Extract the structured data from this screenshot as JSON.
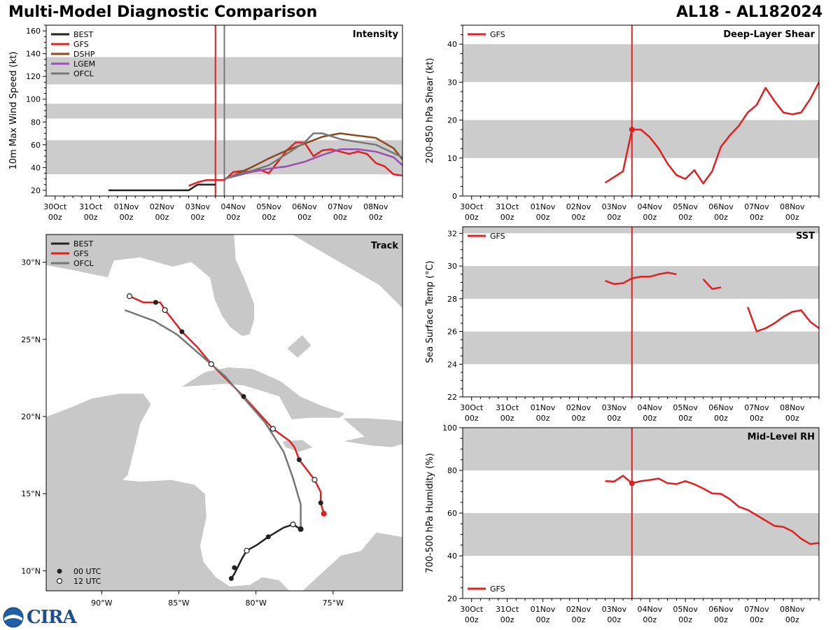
{
  "header": {
    "title": "Multi-Model Diagnostic Comparison",
    "storm": "AL18 - AL182024"
  },
  "colors": {
    "BEST": "#222222",
    "GFS": "#e02020",
    "DSHP": "#8b4a20",
    "LGEM": "#9b4fb0",
    "OFCL": "#777777",
    "band": "#cccccc",
    "land": "#c8c8c8"
  },
  "logo": {
    "text": "CIRA",
    "icon": "noaa-globe-icon"
  },
  "time_ticks": [
    {
      "t": 0,
      "day": "30Oct",
      "hr": "00z"
    },
    {
      "t": 1,
      "day": "31Oct",
      "hr": "00z"
    },
    {
      "t": 2,
      "day": "01Nov",
      "hr": "00z"
    },
    {
      "t": 3,
      "day": "02Nov",
      "hr": "00z"
    },
    {
      "t": 4,
      "day": "03Nov",
      "hr": "00z"
    },
    {
      "t": 5,
      "day": "04Nov",
      "hr": "00z"
    },
    {
      "t": 6,
      "day": "05Nov",
      "hr": "00z"
    },
    {
      "t": 7,
      "day": "06Nov",
      "hr": "00z"
    },
    {
      "t": 8,
      "day": "07Nov",
      "hr": "00z"
    },
    {
      "t": 9,
      "day": "08Nov",
      "hr": "00z"
    }
  ],
  "chart_data": [
    {
      "id": "intensity",
      "type": "line",
      "title": "Intensity",
      "ylabel": "10m Max Wind Speed (kt)",
      "xlim": [
        -0.25,
        9.75
      ],
      "ylim": [
        15,
        165
      ],
      "yticks": [
        20,
        40,
        60,
        80,
        100,
        120,
        140,
        160
      ],
      "bands": [
        [
          34,
          64
        ],
        [
          83,
          96
        ],
        [
          113,
          137
        ]
      ],
      "vlines": [
        {
          "t": 4.5,
          "color": "GFS"
        },
        {
          "t": 4.75,
          "color": "OFCL"
        }
      ],
      "legend": [
        "BEST",
        "GFS",
        "DSHP",
        "LGEM",
        "OFCL"
      ],
      "series": [
        {
          "name": "BEST",
          "x": [
            1.5,
            2,
            2.5,
            3,
            3.5,
            3.75,
            4,
            4.25,
            4.5
          ],
          "y": [
            20,
            20,
            20,
            20,
            20,
            20,
            25,
            25,
            25
          ]
        },
        {
          "name": "GFS",
          "x": [
            3.75,
            4,
            4.25,
            4.5,
            4.75,
            5,
            5.25,
            5.5,
            5.75,
            6,
            6.25,
            6.5,
            6.75,
            7,
            7.25,
            7.5,
            7.75,
            8,
            8.25,
            8.5,
            8.75,
            9,
            9.25,
            9.5,
            9.75
          ],
          "y": [
            24,
            27,
            29,
            29,
            29,
            36,
            37,
            36,
            38,
            35,
            45,
            55,
            62,
            62,
            50,
            55,
            56,
            54,
            52,
            54,
            52,
            44,
            41,
            34,
            33
          ]
        },
        {
          "name": "DSHP",
          "x": [
            4.75,
            5,
            5.5,
            6,
            6.5,
            7,
            7.5,
            8,
            8.5,
            9,
            9.5,
            9.75
          ],
          "y": [
            30,
            33,
            40,
            48,
            55,
            61,
            67,
            70,
            68,
            66,
            57,
            47
          ]
        },
        {
          "name": "LGEM",
          "x": [
            4.75,
            5,
            5.5,
            6,
            6.5,
            7,
            7.5,
            8,
            8.5,
            9,
            9.5,
            9.75
          ],
          "y": [
            30,
            32,
            36,
            39,
            41,
            45,
            51,
            56,
            56,
            54,
            49,
            42
          ]
        },
        {
          "name": "OFCL",
          "x": [
            4.75,
            5,
            5.5,
            6,
            6.5,
            7,
            7.25,
            7.5,
            8,
            9,
            9.75
          ],
          "y": [
            30,
            33,
            37,
            42,
            52,
            62,
            70,
            70,
            65,
            60,
            49
          ]
        }
      ]
    },
    {
      "id": "shear",
      "type": "line",
      "title": "Deep-Layer Shear",
      "ylabel": "200-850 hPa Shear (kt)",
      "xlim": [
        -0.25,
        9.75
      ],
      "ylim": [
        0,
        45
      ],
      "yticks": [
        0,
        10,
        20,
        30,
        40
      ],
      "bands": [
        [
          10,
          20
        ],
        [
          30,
          40
        ]
      ],
      "vlines": [
        {
          "t": 4.5,
          "color": "GFS"
        }
      ],
      "legend": [
        "GFS"
      ],
      "marker": {
        "t": 4.5,
        "v": 17.5
      },
      "series": [
        {
          "name": "GFS",
          "x": [
            3.75,
            4,
            4.25,
            4.5,
            4.75,
            5,
            5.25,
            5.5,
            5.75,
            6,
            6.25,
            6.5,
            6.75,
            7,
            7.25,
            7.5,
            7.75,
            8,
            8.25,
            8.5,
            8.75,
            9,
            9.25,
            9.5,
            9.75
          ],
          "y": [
            3.5,
            5,
            6.5,
            17.5,
            17.5,
            15.5,
            12.5,
            8.5,
            5.5,
            4.5,
            6.8,
            3.3,
            6.5,
            13,
            16,
            18.5,
            22,
            24,
            28.5,
            25,
            22,
            21.5,
            22,
            25.5,
            30
          ]
        }
      ]
    },
    {
      "id": "sst",
      "type": "line",
      "title": "SST",
      "ylabel": "Sea Surface Temp (°C)",
      "xlim": [
        -0.25,
        9.75
      ],
      "ylim": [
        22,
        32.4
      ],
      "yticks": [
        22,
        24,
        26,
        28,
        30,
        32
      ],
      "bands": [
        [
          24,
          26
        ],
        [
          28,
          30
        ],
        [
          32,
          32.4
        ]
      ],
      "vlines": [
        {
          "t": 4.5,
          "color": "GFS"
        }
      ],
      "legend": [
        "GFS"
      ],
      "series": [
        {
          "name": "GFS",
          "segments": [
            {
              "x": [
                3.75,
                4,
                4.25,
                4.5,
                4.75,
                5,
                5.25,
                5.5,
                5.75
              ],
              "y": [
                29.1,
                28.9,
                28.95,
                29.25,
                29.35,
                29.35,
                29.5,
                29.6,
                29.5
              ]
            },
            {
              "x": [
                6.5,
                6.75,
                7
              ],
              "y": [
                29.2,
                28.6,
                28.7
              ]
            },
            {
              "x": [
                7.75,
                8,
                8.25,
                8.5,
                8.75,
                9,
                9.25,
                9.5,
                9.75
              ],
              "y": [
                27.5,
                26,
                26.2,
                26.5,
                26.9,
                27.2,
                27.3,
                26.6,
                26.2
              ]
            }
          ]
        }
      ]
    },
    {
      "id": "rh",
      "type": "line",
      "title": "Mid-Level RH",
      "ylabel": "700-500 hPa Humidity (%)",
      "xlim": [
        -0.25,
        9.75
      ],
      "ylim": [
        20,
        100
      ],
      "yticks": [
        20,
        40,
        60,
        80,
        100
      ],
      "bands": [
        [
          40,
          60
        ],
        [
          80,
          100
        ]
      ],
      "vlines": [
        {
          "t": 4.5,
          "color": "GFS"
        }
      ],
      "legend": [
        "GFS"
      ],
      "legend_position": "bottom-left",
      "marker": {
        "t": 4.5,
        "v": 74
      },
      "series": [
        {
          "name": "GFS",
          "x": [
            3.75,
            4,
            4.25,
            4.5,
            4.75,
            5,
            5.25,
            5.5,
            5.75,
            6,
            6.25,
            6.5,
            6.75,
            7,
            7.25,
            7.5,
            7.75,
            8,
            8.25,
            8.5,
            8.75,
            9,
            9.25,
            9.5,
            9.75
          ],
          "y": [
            75,
            74.8,
            77.5,
            74,
            75,
            75.5,
            76.2,
            74,
            73.6,
            75,
            73.5,
            71.5,
            69.2,
            69,
            66.5,
            63,
            61.5,
            59,
            56.5,
            54,
            53.5,
            51.5,
            48,
            45.5,
            46
          ]
        }
      ]
    },
    {
      "id": "track",
      "type": "scatter",
      "title": "Track",
      "xlim": [
        -93.6,
        -70.5
      ],
      "ylim": [
        8.7,
        31.8
      ],
      "xticks": [
        {
          "v": -90,
          "label": "90°W"
        },
        {
          "v": -85,
          "label": "85°W"
        },
        {
          "v": -80,
          "label": "80°W"
        },
        {
          "v": -75,
          "label": "75°W"
        }
      ],
      "yticks": [
        {
          "v": 10,
          "label": "10°N"
        },
        {
          "v": 15,
          "label": "15°N"
        },
        {
          "v": 20,
          "label": "20°N"
        },
        {
          "v": 25,
          "label": "25°N"
        },
        {
          "v": 30,
          "label": "30°N"
        }
      ],
      "legend": [
        "BEST",
        "GFS",
        "OFCL"
      ],
      "marker_legend": [
        {
          "label": "00 UTC",
          "fill": "filled"
        },
        {
          "label": "12 UTC",
          "fill": "open"
        }
      ],
      "series": [
        {
          "name": "BEST",
          "lon": [
            -81.6,
            -81.4,
            -81.2,
            -80.9,
            -80.6,
            -79.9,
            -79.2,
            -78.7,
            -78.2,
            -77.6,
            -77.1
          ],
          "lat": [
            9.5,
            9.8,
            10.2,
            10.8,
            11.3,
            11.7,
            12.2,
            12.5,
            12.8,
            13.0,
            12.7
          ],
          "markers": [
            {
              "lon": -81.6,
              "lat": 9.5,
              "fill": "filled"
            },
            {
              "lon": -81.4,
              "lat": 10.2,
              "fill": "filled"
            },
            {
              "lon": -80.6,
              "lat": 11.3,
              "fill": "open"
            },
            {
              "lon": -79.2,
              "lat": 12.2,
              "fill": "filled"
            },
            {
              "lon": -77.6,
              "lat": 13.0,
              "fill": "open"
            },
            {
              "lon": -77.1,
              "lat": 12.7,
              "fill": "end"
            }
          ]
        },
        {
          "name": "GFS",
          "lon": [
            -75.6,
            -75.8,
            -75.8,
            -76.2,
            -77.2,
            -77.5,
            -77.8,
            -78.9,
            -79.8,
            -80.8,
            -81.8,
            -82.9,
            -83.8,
            -84.8,
            -85.5,
            -85.9,
            -86.2,
            -86.5,
            -87.3,
            -88.2
          ],
          "lat": [
            13.7,
            14.4,
            15.1,
            15.9,
            17.2,
            18.0,
            18.4,
            19.2,
            20.2,
            21.3,
            22.3,
            23.4,
            24.5,
            25.5,
            26.4,
            26.9,
            27.4,
            27.4,
            27.4,
            27.8
          ],
          "markers": [
            {
              "lon": -75.6,
              "lat": 13.7,
              "fill": "end"
            },
            {
              "lon": -75.8,
              "lat": 14.4,
              "fill": "filled"
            },
            {
              "lon": -76.2,
              "lat": 15.9,
              "fill": "open"
            },
            {
              "lon": -77.2,
              "lat": 17.2,
              "fill": "filled"
            },
            {
              "lon": -78.9,
              "lat": 19.2,
              "fill": "open"
            },
            {
              "lon": -80.8,
              "lat": 21.3,
              "fill": "filled"
            },
            {
              "lon": -82.9,
              "lat": 23.4,
              "fill": "open"
            },
            {
              "lon": -84.8,
              "lat": 25.5,
              "fill": "filled"
            },
            {
              "lon": -85.9,
              "lat": 26.9,
              "fill": "open"
            },
            {
              "lon": -86.5,
              "lat": 27.4,
              "fill": "filled"
            },
            {
              "lon": -88.2,
              "lat": 27.8,
              "fill": "open"
            }
          ]
        },
        {
          "name": "OFCL",
          "lon": [
            -77.1,
            -77.1,
            -77.1,
            -77.6,
            -78.2,
            -79.4,
            -80.7,
            -82.0,
            -83.6,
            -85.1,
            -86.6,
            -88.5
          ],
          "lat": [
            12.7,
            13.5,
            14.3,
            16.0,
            17.7,
            19.6,
            21.1,
            22.6,
            24.0,
            25.3,
            26.2,
            26.9
          ]
        }
      ]
    }
  ]
}
